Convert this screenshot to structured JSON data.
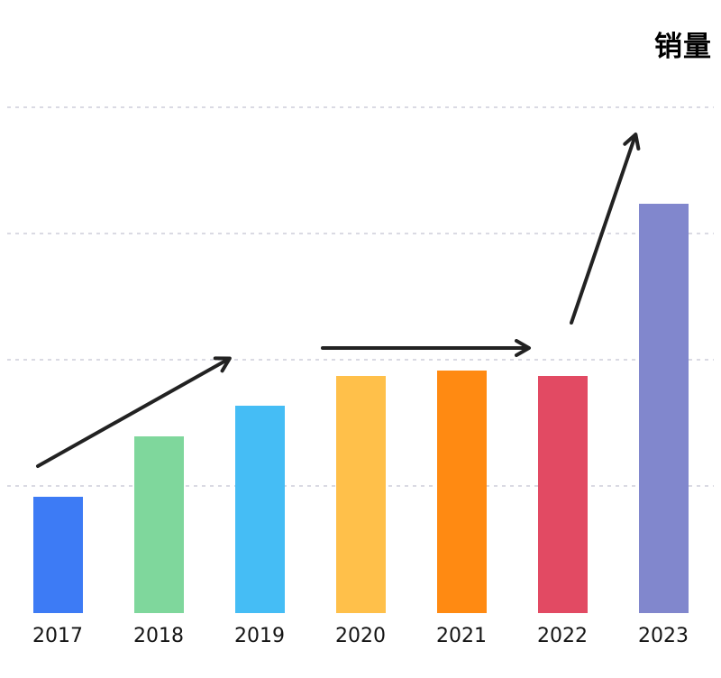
{
  "chart_data": {
    "type": "bar",
    "title": "销量",
    "categories": [
      "2017",
      "2018",
      "2019",
      "2020",
      "2021",
      "2022",
      "2023"
    ],
    "values": [
      23,
      35,
      41,
      47,
      48,
      47,
      81
    ],
    "xlabel": "",
    "ylabel": "",
    "ylim": [
      0,
      100
    ],
    "gridlines": [
      25,
      50,
      75,
      100
    ],
    "grid": "dashed horizontal lines, no visible y-axis tick labels, no axis lines",
    "legend": "none",
    "bar_colors": [
      "#3d7bf5",
      "#7fd79c",
      "#45bdf5",
      "#ffc04a",
      "#ff8a12",
      "#e24a63",
      "#8187cd"
    ],
    "annotations": [
      {
        "name": "rising-trend-arrow",
        "desc": "diagonal arrow rising from above 2017 bar to above 2019 bar"
      },
      {
        "name": "flat-trend-arrow",
        "desc": "horizontal arrow spanning above 2020 through 2022 bars"
      },
      {
        "name": "sharp-rise-arrow",
        "desc": "steep arrow rising from above 2022 bar toward top of 2023 bar"
      }
    ]
  },
  "colors": {
    "background": "#ffffff",
    "grid": "#dadae3",
    "arrow": "#222222",
    "label": "#141414",
    "title": "#000000"
  }
}
